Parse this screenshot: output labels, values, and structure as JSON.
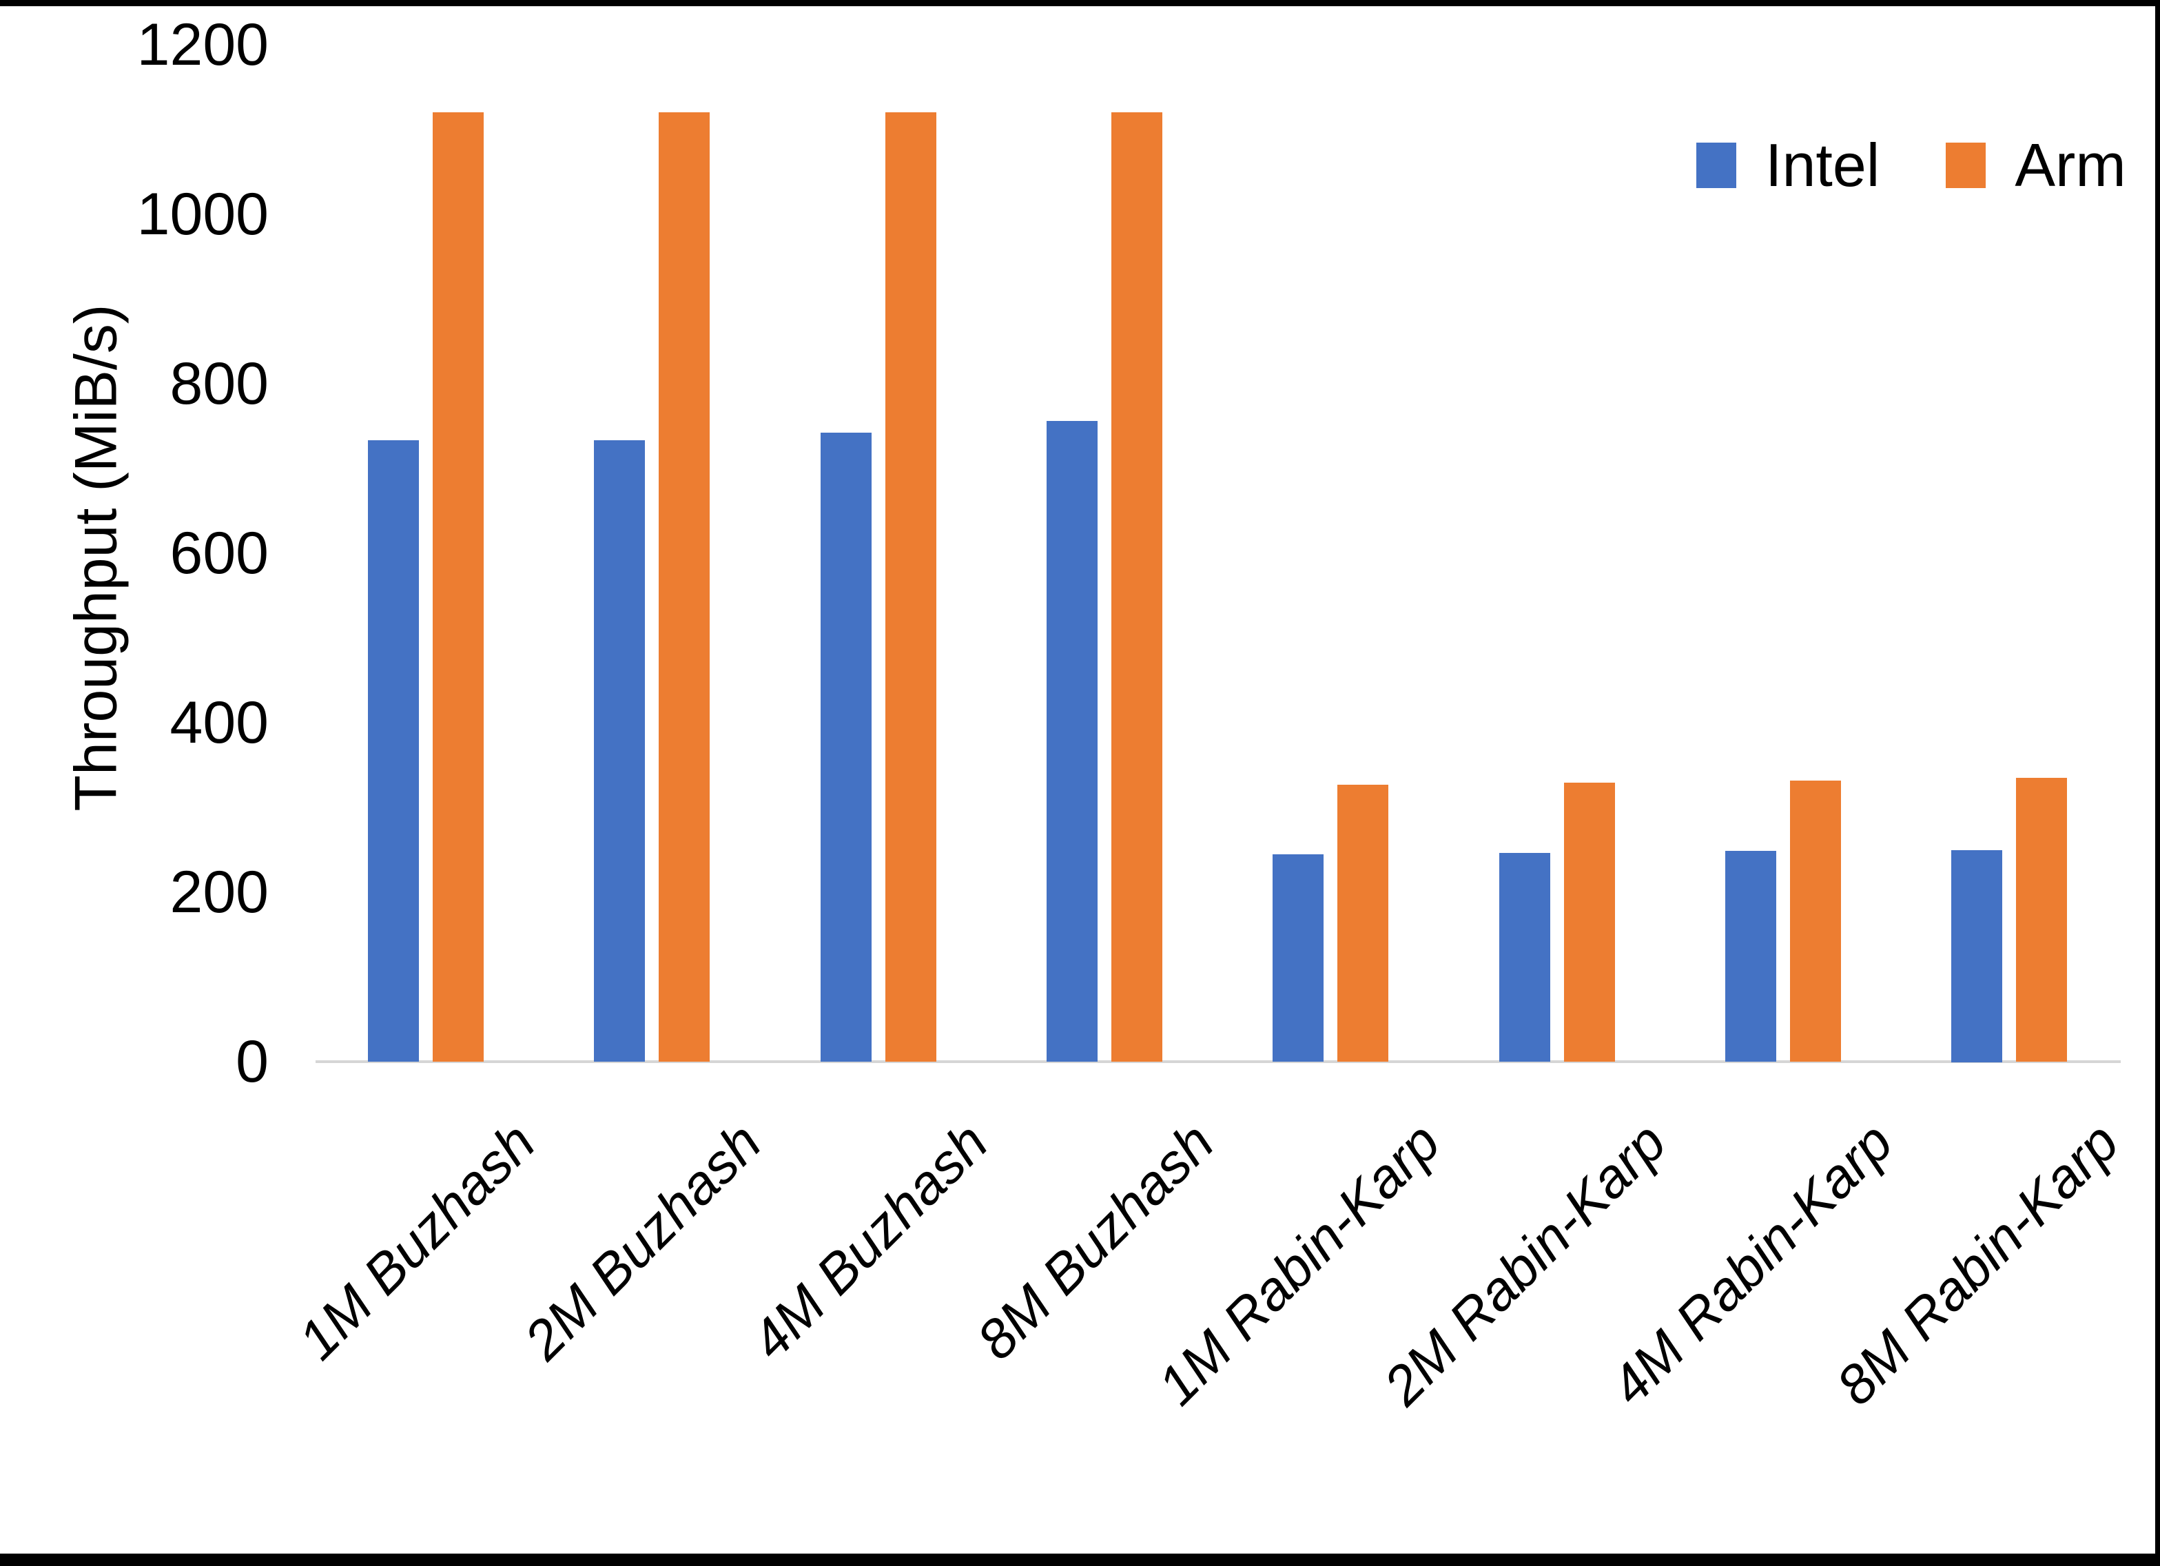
{
  "chart_data": {
    "type": "bar",
    "title": "",
    "xlabel": "",
    "ylabel": "Throughput (MiB/s)",
    "ylim": [
      0,
      1200
    ],
    "yticks": [
      0,
      200,
      400,
      600,
      800,
      1000,
      1200
    ],
    "grid": false,
    "legend_position": "top-right",
    "categories": [
      "1M Buzhash",
      "2M Buzhash",
      "4M Buzhash",
      "8M Buzhash",
      "1M Rabin-Karp",
      "2M Rabin-Karp",
      "4M Rabin-Karp",
      "8M Rabin-Karp"
    ],
    "series": [
      {
        "name": "Intel",
        "color": "#4472C4",
        "values": [
          733,
          733,
          742,
          756,
          245,
          246,
          249,
          250
        ]
      },
      {
        "name": "Arm",
        "color": "#ED7D31",
        "values": [
          1120,
          1120,
          1120,
          1120,
          327,
          329,
          332,
          335
        ]
      }
    ],
    "axis_line_color": "#D6D6D6",
    "text_color": "#000000",
    "window_border_color": "#000000"
  }
}
